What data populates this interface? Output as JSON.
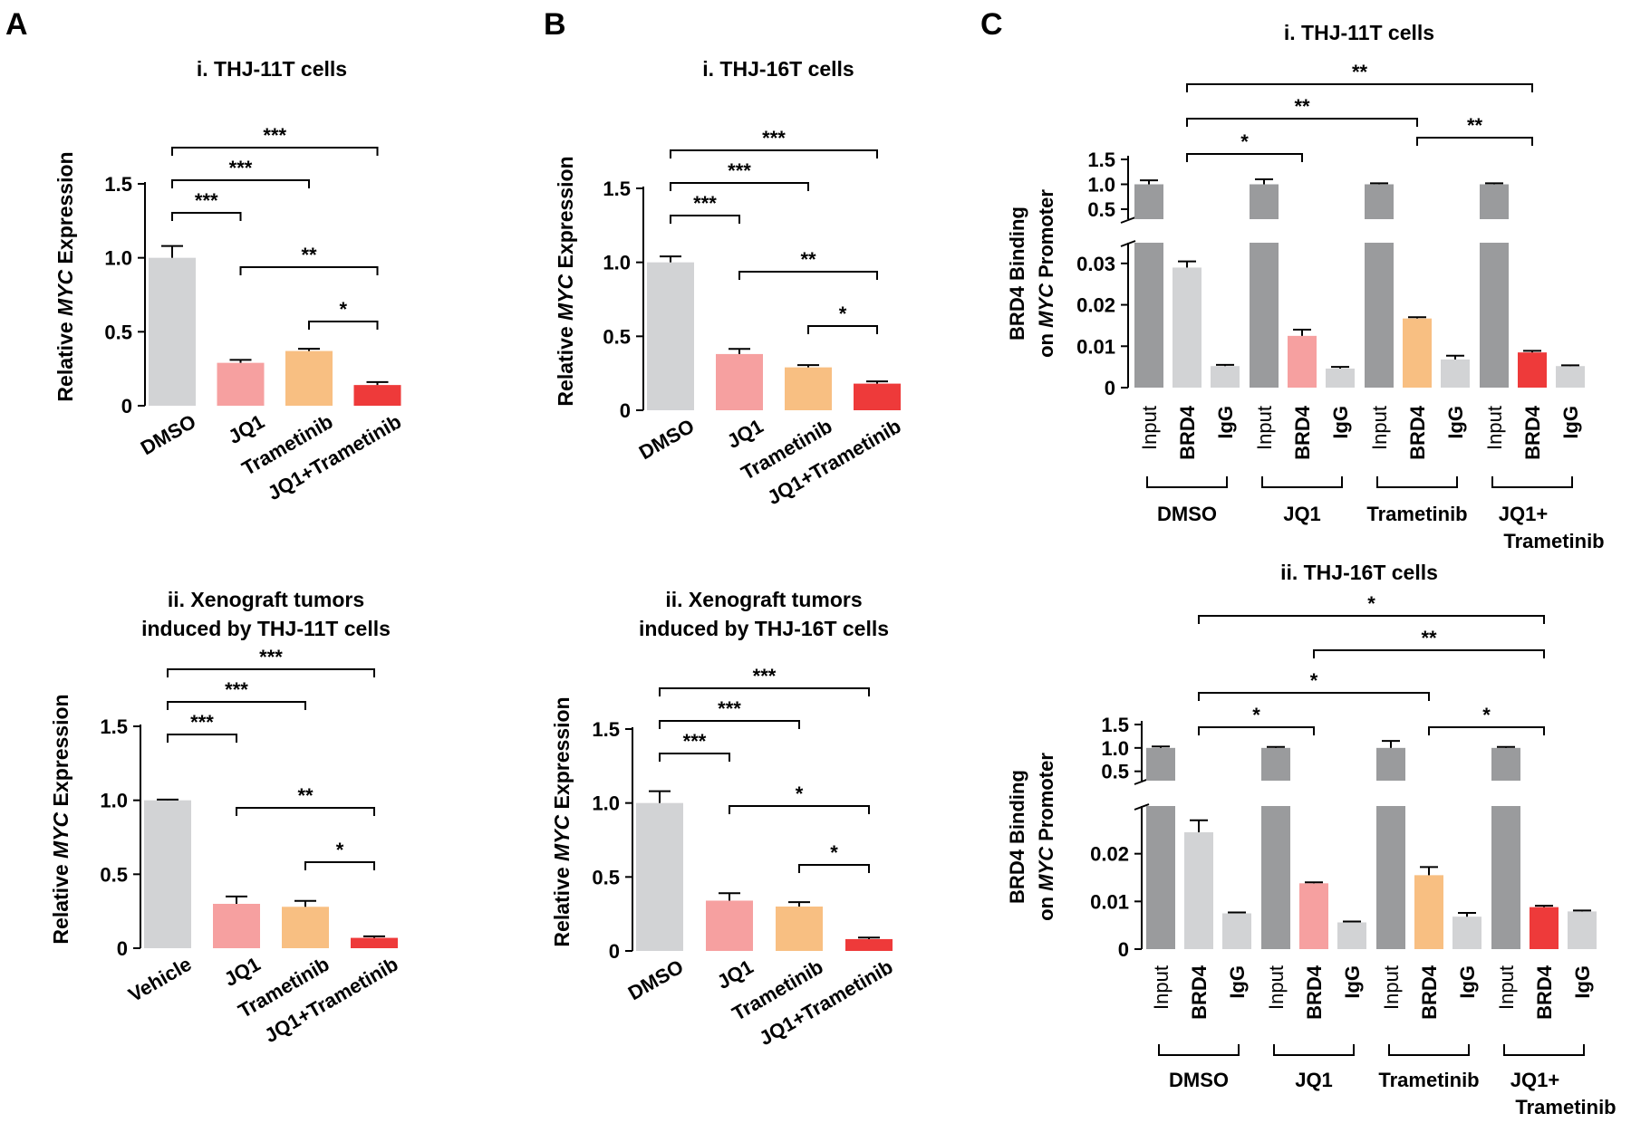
{
  "figure": {
    "panel_letters": [
      "A",
      "B",
      "C"
    ]
  },
  "colors": {
    "dmso": "#d2d3d5",
    "jq1": "#f6a0a0",
    "trametinib": "#f8bf82",
    "combo": "#ee3a3a",
    "input": "#9a9b9d",
    "igg": "#d2d3d5",
    "axis": "#000000"
  },
  "chart_data": [
    {
      "id": "A_i",
      "panel": "A",
      "type": "bar",
      "title": "i. THJ-11T cells",
      "ylabel_pre": "Relative ",
      "ylabel_ital": "MYC",
      "ylabel_post": " Expression",
      "categories": [
        "DMSO",
        "JQ1",
        "Trametinib",
        "JQ1+Trametinib"
      ],
      "values": [
        1.0,
        0.29,
        0.37,
        0.14
      ],
      "errors": [
        0.08,
        0.02,
        0.015,
        0.02
      ],
      "ylim": [
        0,
        1.5
      ],
      "yticks": [
        "0",
        "0.5",
        "1.0",
        "1.5"
      ],
      "significance": [
        {
          "from": 0,
          "to": 1,
          "label": "***"
        },
        {
          "from": 0,
          "to": 2,
          "label": "***"
        },
        {
          "from": 0,
          "to": 3,
          "label": "***"
        },
        {
          "from": 1,
          "to": 3,
          "label": "**"
        },
        {
          "from": 2,
          "to": 3,
          "label": "*"
        }
      ]
    },
    {
      "id": "B_i",
      "panel": "B",
      "type": "bar",
      "title": "i. THJ-16T cells",
      "ylabel_pre": "Relative ",
      "ylabel_ital": "MYC",
      "ylabel_post": " Expression",
      "categories": [
        "DMSO",
        "JQ1",
        "Trametinib",
        "JQ1+Trametinib"
      ],
      "values": [
        1.0,
        0.38,
        0.29,
        0.18
      ],
      "errors": [
        0.04,
        0.035,
        0.015,
        0.015
      ],
      "ylim": [
        0,
        1.5
      ],
      "yticks": [
        "0",
        "0.5",
        "1.0",
        "1.5"
      ],
      "significance": [
        {
          "from": 0,
          "to": 1,
          "label": "***"
        },
        {
          "from": 0,
          "to": 2,
          "label": "***"
        },
        {
          "from": 0,
          "to": 3,
          "label": "***"
        },
        {
          "from": 1,
          "to": 3,
          "label": "**"
        },
        {
          "from": 2,
          "to": 3,
          "label": "*"
        }
      ]
    },
    {
      "id": "A_ii",
      "panel": "A",
      "type": "bar",
      "title": "ii. Xenograft tumors",
      "title2": "induced by THJ-11T cells",
      "ylabel_pre": "Relative ",
      "ylabel_ital": "MYC",
      "ylabel_post": " Expression",
      "categories": [
        "Vehicle",
        "JQ1",
        "Trametinib",
        "JQ1+Trametinib"
      ],
      "values": [
        1.0,
        0.3,
        0.28,
        0.07
      ],
      "errors": [
        0.005,
        0.05,
        0.04,
        0.01
      ],
      "ylim": [
        0,
        1.5
      ],
      "yticks": [
        "0",
        "0.5",
        "1.0",
        "1.5"
      ],
      "significance": [
        {
          "from": 0,
          "to": 1,
          "label": "***"
        },
        {
          "from": 0,
          "to": 2,
          "label": "***"
        },
        {
          "from": 0,
          "to": 3,
          "label": "***"
        },
        {
          "from": 1,
          "to": 3,
          "label": "**"
        },
        {
          "from": 2,
          "to": 3,
          "label": "*"
        }
      ]
    },
    {
      "id": "B_ii",
      "panel": "B",
      "type": "bar",
      "title": "ii. Xenograft tumors",
      "title2": "induced by THJ-16T cells",
      "ylabel_pre": "Relative ",
      "ylabel_ital": "MYC",
      "ylabel_post": " Expression",
      "categories": [
        "DMSO",
        "JQ1",
        "Trametinib",
        "JQ1+Trametinib"
      ],
      "values": [
        1.0,
        0.34,
        0.3,
        0.08
      ],
      "errors": [
        0.08,
        0.05,
        0.03,
        0.01
      ],
      "ylim": [
        0,
        1.5
      ],
      "yticks": [
        "0",
        "0.5",
        "1.0",
        "1.5"
      ],
      "significance": [
        {
          "from": 0,
          "to": 1,
          "label": "***"
        },
        {
          "from": 0,
          "to": 2,
          "label": "***"
        },
        {
          "from": 0,
          "to": 3,
          "label": "***"
        },
        {
          "from": 1,
          "to": 3,
          "label": "*"
        },
        {
          "from": 2,
          "to": 3,
          "label": "*"
        }
      ]
    },
    {
      "id": "C_i",
      "panel": "C",
      "type": "bar",
      "title": "i. THJ-11T cells",
      "ylabel1": "BRD4 Binding",
      "ylabel2_pre": "on ",
      "ylabel2_ital": "MYC",
      "ylabel2_post": " Promoter",
      "groups": [
        "DMSO",
        "JQ1",
        "Trametinib",
        "JQ1+"
      ],
      "group_last_line2": "Trametinib",
      "bar_labels": [
        "Input",
        "BRD4",
        "IgG"
      ],
      "input_values": [
        1.0,
        1.0,
        1.0,
        1.0
      ],
      "input_errors": [
        0.08,
        0.1,
        0.02,
        0.02
      ],
      "brd4_values": [
        0.029,
        0.0125,
        0.0167,
        0.0085
      ],
      "brd4_errors": [
        0.0015,
        0.0015,
        0.0003,
        0.0004
      ],
      "igg_values": [
        0.0052,
        0.0046,
        0.0068,
        0.0052
      ],
      "igg_errors": [
        0.0003,
        0.0004,
        0.0009,
        0.0002
      ],
      "upper_ylim": [
        0,
        1.5
      ],
      "upper_ticks": [
        "0.5",
        "1.0",
        "1.5"
      ],
      "lower_ylim": [
        0,
        0.035
      ],
      "lower_ticks": [
        "0",
        "0.01",
        "0.02",
        "0.03"
      ],
      "significance": [
        {
          "from": 0,
          "to": 1,
          "label": "*"
        },
        {
          "from": 0,
          "to": 2,
          "label": "**"
        },
        {
          "from": 0,
          "to": 3,
          "label": "**"
        },
        {
          "from": 2,
          "to": 3,
          "label": "**"
        }
      ]
    },
    {
      "id": "C_ii",
      "panel": "C",
      "type": "bar",
      "title": "ii. THJ-16T cells",
      "ylabel1": "BRD4 Binding",
      "ylabel2_pre": "on ",
      "ylabel2_ital": "MYC",
      "ylabel2_post": " Promoter",
      "groups": [
        "DMSO",
        "JQ1",
        "Trametinib",
        "JQ1+"
      ],
      "group_last_line2": "Trametinib",
      "bar_labels": [
        "Input",
        "BRD4",
        "IgG"
      ],
      "input_values": [
        1.0,
        1.0,
        1.0,
        1.0
      ],
      "input_errors": [
        0.03,
        0.02,
        0.15,
        0.02
      ],
      "brd4_values": [
        0.0245,
        0.0138,
        0.0155,
        0.0088
      ],
      "brd4_errors": [
        0.0025,
        0.0002,
        0.0017,
        0.0003
      ],
      "igg_values": [
        0.0075,
        0.0056,
        0.0068,
        0.0079
      ],
      "igg_errors": [
        0.0002,
        0.0002,
        0.0008,
        0.0002
      ],
      "upper_ylim": [
        0,
        1.5
      ],
      "upper_ticks": [
        "0.5",
        "1.0",
        "1.5"
      ],
      "lower_ylim": [
        0,
        0.03
      ],
      "lower_ticks": [
        "0",
        "0.01",
        "0.02"
      ],
      "significance": [
        {
          "from": 0,
          "to": 1,
          "label": "*"
        },
        {
          "from": 0,
          "to": 2,
          "label": "*"
        },
        {
          "from": 1,
          "to": 3,
          "label": "**"
        },
        {
          "from": 0,
          "to": 3,
          "label": "*"
        },
        {
          "from": 2,
          "to": 3,
          "label": "*"
        }
      ]
    }
  ]
}
